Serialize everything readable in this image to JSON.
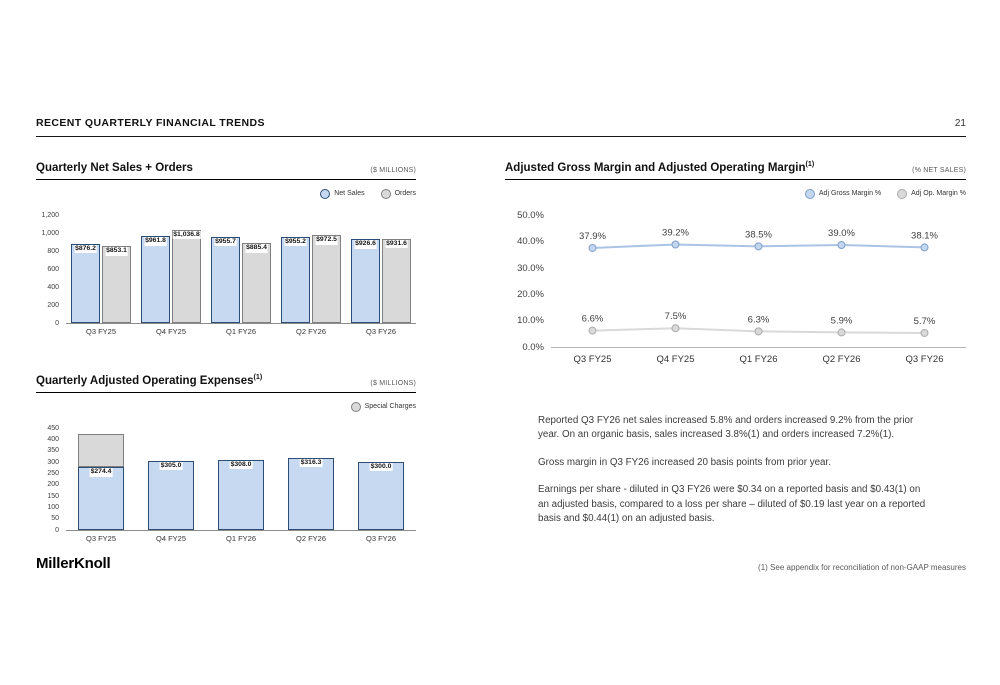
{
  "page": {
    "header_title": "RECENT QUARTERLY FINANCIAL TRENDS",
    "page_number": "21",
    "logo_text": "MillerKnoll",
    "footnote": "(1) See appendix for reconciliation of non-GAAP measures"
  },
  "text_panel": {
    "paragraphs": [
      "Reported Q3 FY26 net sales increased 5.8% and orders increased 9.2% from the prior year. On an organic basis, sales increased 3.8%(1) and orders increased 7.2%(1).",
      "Gross margin in Q3 FY26 increased 20 basis points from prior year.",
      "Earnings per share - diluted in Q3 FY26 were $0.34 on a reported basis and $0.43(1) on an adjusted basis, compared to a loss per share – diluted of $0.19 last year on a reported basis and $0.44(1) on an adjusted basis."
    ]
  },
  "chart_data": [
    {
      "id": "net_sales_orders",
      "type": "bar",
      "bar_layout": "grouped",
      "title": "Quarterly Net Sales + Orders",
      "title_sup": "",
      "units_label": "($ MILLIONS)",
      "categories": [
        "Q3 FY25",
        "Q4 FY25",
        "Q1 FY26",
        "Q2 FY26",
        "Q3 FY26"
      ],
      "series": [
        {
          "name": "Net Sales",
          "values": [
            876.2,
            961.8,
            955.7,
            955.2,
            926.6
          ],
          "labels": [
            "$876.2",
            "$961.8",
            "$955.7",
            "$955.2",
            "$926.6"
          ],
          "fill": "#c7d9f1",
          "border": "#2e4d74"
        },
        {
          "name": "Orders",
          "values": [
            853.1,
            1036.8,
            885.4,
            972.5,
            931.6
          ],
          "labels": [
            "$853.1",
            "$1,036.8",
            "$885.4",
            "$972.5",
            "$931.6"
          ],
          "fill": "#d9d9d9",
          "border": "#808080"
        }
      ],
      "legend": [
        {
          "label": "Net Sales",
          "fill": "#c7d9f1",
          "border": "#2e4d74"
        },
        {
          "label": "Orders",
          "fill": "#d9d9d9",
          "border": "#808080"
        }
      ],
      "ylim": [
        0,
        1200
      ],
      "yticks": [
        "0",
        "200",
        "400",
        "600",
        "800",
        "1,000",
        "1,200"
      ],
      "grid": false,
      "legend_position": "top-right"
    },
    {
      "id": "adj_operating_expenses",
      "type": "bar",
      "bar_layout": "stacked",
      "title": "Quarterly Adjusted Operating Expenses",
      "title_sup": "(1)",
      "units_label": "($ MILLIONS)",
      "categories": [
        "Q3 FY25",
        "Q4 FY25",
        "Q1 FY26",
        "Q2 FY26",
        "Q3 FY26"
      ],
      "series": [
        {
          "name": "Adjusted Operating Expenses",
          "values": [
            274.4,
            305.0,
            308.0,
            316.3,
            300.0
          ],
          "labels": [
            "$274.4",
            "$305.0",
            "$308.0",
            "$316.3",
            "$300.0"
          ],
          "fill": "#c7d9f1",
          "border": "#2e4d74"
        },
        {
          "name": "Special Charges",
          "values": [
            146,
            0,
            0,
            0,
            0
          ],
          "labels": [
            "",
            "",
            "",
            "",
            ""
          ],
          "fill": "#d9d9d9",
          "border": "#808080",
          "estimated": true
        }
      ],
      "legend": [
        {
          "label": "Special Charges",
          "fill": "#d9d9d9",
          "border": "#808080"
        }
      ],
      "ylim": [
        0,
        450
      ],
      "yticks": [
        "0",
        "50",
        "100",
        "150",
        "200",
        "250",
        "300",
        "350",
        "400",
        "450"
      ],
      "grid": false,
      "legend_position": "top-right"
    },
    {
      "id": "margins",
      "type": "line",
      "title": "Adjusted Gross Margin and Adjusted Operating Margin",
      "title_sup": "(1)",
      "units_label": "(% NET SALES)",
      "categories": [
        "Q3 FY25",
        "Q4 FY25",
        "Q1 FY26",
        "Q2 FY26",
        "Q3 FY26"
      ],
      "series": [
        {
          "name": "Adj Gross Margin %",
          "values": [
            37.9,
            39.2,
            38.5,
            39.0,
            38.1
          ],
          "labels": [
            "37.9%",
            "39.2%",
            "38.5%",
            "39.0%",
            "38.1%"
          ],
          "line": "#aac4e6",
          "fill": "#c3d6ef",
          "border": "#7f9fc9"
        },
        {
          "name": "Adj Op. Margin %",
          "values": [
            6.6,
            7.5,
            6.3,
            5.9,
            5.7
          ],
          "labels": [
            "6.6%",
            "7.5%",
            "6.3%",
            "5.9%",
            "5.7%"
          ],
          "line": "#d9d9d9",
          "fill": "#d9d9d9",
          "border": "#ababab"
        }
      ],
      "legend": [
        {
          "label": "Adj Gross Margin %",
          "fill": "#c3d6ef",
          "border": "#7f9fc9"
        },
        {
          "label": "Adj Op. Margin %",
          "fill": "#d9d9d9",
          "border": "#ababab"
        }
      ],
      "ylim": [
        0,
        50
      ],
      "yticks": [
        "0.0%",
        "10.0%",
        "20.0%",
        "30.0%",
        "40.0%",
        "50.0%"
      ],
      "grid": false,
      "legend_position": "top-right"
    }
  ]
}
